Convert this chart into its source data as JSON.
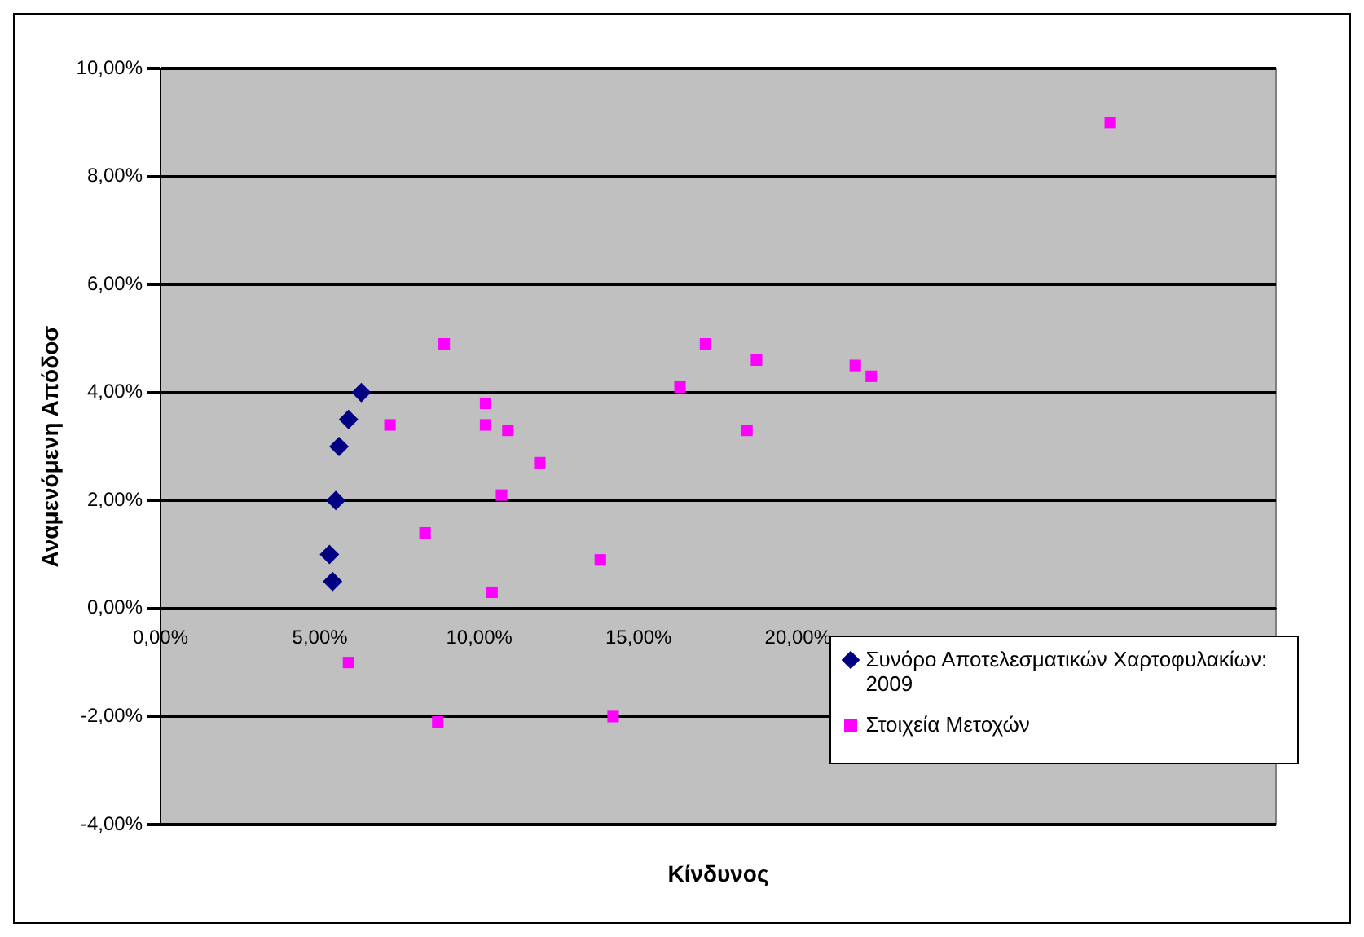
{
  "chart_data": {
    "type": "scatter",
    "xlabel": "Κίνδυνος",
    "ylabel": "Αναμενόμενη Απόδοσ",
    "xlim": [
      0,
      35
    ],
    "ylim": [
      -4,
      10
    ],
    "xticks": [
      {
        "value": 0,
        "label": "0,00%"
      },
      {
        "value": 5,
        "label": "5,00%"
      },
      {
        "value": 10,
        "label": "10,00%"
      },
      {
        "value": 15,
        "label": "15,00%"
      },
      {
        "value": 20,
        "label": "20,00%"
      }
    ],
    "yticks": [
      {
        "value": -4,
        "label": "-4,00%"
      },
      {
        "value": -2,
        "label": "-2,00%"
      },
      {
        "value": 0,
        "label": "0,00%"
      },
      {
        "value": 2,
        "label": "2,00%"
      },
      {
        "value": 4,
        "label": "4,00%"
      },
      {
        "value": 6,
        "label": "6,00%"
      },
      {
        "value": 8,
        "label": "8,00%"
      },
      {
        "value": 10,
        "label": "10,00%"
      }
    ],
    "grid": "y",
    "legend": "bottom right",
    "series": [
      {
        "name": "Συνόρο Αποτελεσματικών Χαρτοφυλακίων: 2009",
        "color": "#000080",
        "marker": "diamond",
        "x": [
          5.4,
          5.3,
          5.5,
          5.6,
          5.9,
          6.3
        ],
        "values": [
          0.5,
          1.0,
          2.0,
          3.0,
          3.5,
          4.0
        ]
      },
      {
        "name": "Στοιχεία Μετοχών",
        "color": "#ff00ff",
        "marker": "square",
        "x": [
          8.9,
          10.2,
          7.2,
          10.2,
          10.9,
          11.9,
          10.7,
          8.3,
          13.8,
          10.4,
          5.9,
          8.7,
          14.2,
          17.1,
          18.7,
          16.3,
          18.4,
          21.8,
          22.3,
          29.8
        ],
        "values": [
          4.9,
          3.8,
          3.4,
          3.4,
          3.3,
          2.7,
          2.1,
          1.4,
          0.9,
          0.3,
          -1.0,
          -2.1,
          -2.0,
          4.9,
          4.6,
          4.1,
          3.3,
          4.5,
          4.3,
          9.0
        ]
      }
    ]
  }
}
